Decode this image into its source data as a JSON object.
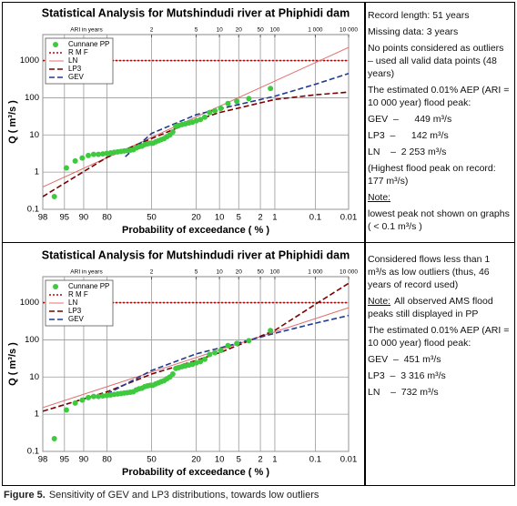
{
  "chart_data": [
    {
      "type": "scatter",
      "title": "Statistical Analysis for Mutshindudi river at Phiphidi dam",
      "xlabel": "Probability of exceedance ( % )",
      "ylabel": "Q  ( m³/s )",
      "xscale": "probit",
      "xlim": [
        98,
        0.01
      ],
      "xticks": [
        98,
        95,
        90,
        80,
        50,
        20,
        10,
        5,
        2,
        1,
        0.1,
        0.01
      ],
      "yscale": "log",
      "ylim": [
        0.1,
        5000
      ],
      "yticks": [
        0.1,
        1,
        10,
        100,
        1000
      ],
      "grid": true,
      "legend": "upper left",
      "top_axis": {
        "label": "ARI in years",
        "ticks": [
          2,
          5,
          10,
          20,
          50,
          100,
          {
            "value": 1000,
            "label": "1 000"
          },
          {
            "value": 10000,
            "label": "10 000"
          }
        ]
      },
      "series": [
        {
          "name": "Cunnane PP",
          "kind": "points",
          "color": "#3fc93f",
          "x": [
            1.24,
            3.32,
            5.39,
            7.47,
            9.54,
            11.62,
            13.69,
            15.77,
            17.84,
            19.92,
            21.99,
            24.07,
            26.14,
            28.22,
            30.29,
            32.37,
            34.44,
            36.51,
            38.59,
            40.66,
            42.74,
            44.81,
            46.89,
            48.96,
            51.04,
            53.11,
            55.19,
            57.26,
            59.34,
            61.41,
            63.49,
            65.56,
            67.63,
            69.71,
            71.78,
            73.86,
            75.93,
            78.01,
            80.08,
            82.16,
            84.23,
            86.31,
            88.38,
            90.46,
            92.53,
            94.61,
            96.68
          ],
          "values": [
            177,
            95,
            80,
            70,
            52,
            45,
            40,
            30,
            26,
            24,
            22,
            21,
            20,
            19,
            18,
            17,
            12,
            10,
            9,
            8,
            7.5,
            7,
            6.5,
            6,
            6,
            5.8,
            5.5,
            5,
            4.8,
            4.5,
            4,
            3.9,
            3.8,
            3.7,
            3.6,
            3.5,
            3.4,
            3.3,
            3.2,
            3.1,
            3,
            3,
            2.8,
            2.4,
            2,
            1.3,
            0.22
          ]
        },
        {
          "name": "R M F",
          "kind": "line",
          "dash": "dotted",
          "color": "#c00000",
          "x": [
            98,
            0.01
          ],
          "values": [
            1000,
            1000
          ]
        },
        {
          "name": "LN",
          "kind": "line",
          "dash": "solid",
          "color": "#e07070",
          "x": [
            98,
            80,
            50,
            20,
            10,
            1,
            0.1,
            0.01
          ],
          "values": [
            0.4,
            2.45,
            8.6,
            30.5,
            58.9,
            281,
            881,
            2253
          ]
        },
        {
          "name": "LP3",
          "kind": "line",
          "dash": "dashed",
          "color": "#7a0000",
          "x": [
            98,
            80,
            50,
            20,
            10,
            1,
            0.1,
            0.01
          ],
          "values": [
            0.22,
            2.5,
            8,
            25,
            40,
            90,
            120,
            142
          ]
        },
        {
          "name": "GEV",
          "kind": "line",
          "dash": "dashed",
          "color": "#1f3a93",
          "x": [
            69,
            50,
            20,
            10,
            1,
            0.1,
            0.01
          ],
          "values": [
            2.6,
            11,
            35,
            50,
            110,
            230,
            449
          ]
        }
      ]
    },
    {
      "type": "scatter",
      "title": "Statistical Analysis for Mutshindudi river at Phiphidi dam",
      "xlabel": "Probability of exceedance ( % )",
      "ylabel": "Q  ( m³/s )",
      "xscale": "probit",
      "xlim": [
        98,
        0.01
      ],
      "xticks": [
        98,
        95,
        90,
        80,
        50,
        20,
        10,
        5,
        2,
        1,
        0.1,
        0.01
      ],
      "yscale": "log",
      "ylim": [
        0.1,
        5000
      ],
      "yticks": [
        0.1,
        1,
        10,
        100,
        1000
      ],
      "grid": true,
      "legend": "upper left",
      "top_axis": {
        "label": "ARI in years",
        "ticks": [
          2,
          5,
          10,
          20,
          50,
          100,
          {
            "value": 1000,
            "label": "1 000"
          },
          {
            "value": 10000,
            "label": "10 000"
          }
        ]
      },
      "series": [
        {
          "name": "Cunnane PP",
          "kind": "points",
          "color": "#3fc93f",
          "x": [
            1.24,
            3.32,
            5.39,
            7.47,
            9.54,
            11.62,
            13.69,
            15.77,
            17.84,
            19.92,
            21.99,
            24.07,
            26.14,
            28.22,
            30.29,
            32.37,
            34.44,
            36.51,
            38.59,
            40.66,
            42.74,
            44.81,
            46.89,
            48.96,
            51.04,
            53.11,
            55.19,
            57.26,
            59.34,
            61.41,
            63.49,
            65.56,
            67.63,
            69.71,
            71.78,
            73.86,
            75.93,
            78.01,
            80.08,
            82.16,
            84.23,
            86.31,
            88.38,
            90.46,
            92.53,
            94.61,
            96.68
          ],
          "values": [
            177,
            95,
            80,
            70,
            52,
            45,
            40,
            30,
            26,
            24,
            22,
            21,
            20,
            19,
            18,
            17,
            12,
            10,
            9,
            8,
            7.5,
            7,
            6.5,
            6,
            6,
            5.8,
            5.5,
            5,
            4.8,
            4.5,
            4,
            3.9,
            3.8,
            3.7,
            3.6,
            3.5,
            3.4,
            3.3,
            3.2,
            3.1,
            3,
            3,
            2.8,
            2.4,
            2,
            1.3,
            0.22
          ]
        },
        {
          "name": "R M F",
          "kind": "line",
          "dash": "dotted",
          "color": "#c00000",
          "x": [
            98,
            0.01
          ],
          "values": [
            1000,
            1000
          ]
        },
        {
          "name": "LN",
          "kind": "line",
          "dash": "solid",
          "color": "#e07070",
          "x": [
            98,
            80,
            50,
            20,
            10,
            1,
            0.1,
            0.01
          ],
          "values": [
            1.5,
            5.5,
            13.6,
            33.4,
            53.6,
            164,
            372,
            732
          ]
        },
        {
          "name": "LP3",
          "kind": "line",
          "dash": "dashed",
          "color": "#7a0000",
          "x": [
            98,
            80,
            50,
            20,
            10,
            1,
            0.1,
            0.01
          ],
          "values": [
            1.2,
            4,
            12,
            28,
            45,
            180,
            900,
            3316
          ]
        },
        {
          "name": "GEV",
          "kind": "line",
          "dash": "dashed",
          "color": "#1f3a93",
          "x": [
            80,
            50,
            20,
            10,
            1,
            0.1,
            0.01
          ],
          "values": [
            3.5,
            15,
            42,
            60,
            150,
            280,
            451
          ]
        }
      ]
    }
  ],
  "notes": [
    [
      "Record length: 51 years",
      "Missing data: 3 years",
      "No points considered as outliers – used all valid data points (48 years)",
      "The estimated 0.01% AEP (ARI = 10 000 year) flood peak:",
      "GEV  –      449 m³/s",
      "LP3  –      142 m³/s",
      "LN    –  2 253 m³/s",
      "(Highest flood peak on record: 177 m³/s)",
      {
        "underline": "Note:"
      },
      "lowest peak not shown on graphs ( < 0.1 m³/s )"
    ],
    [
      "Considered flows less than 1 m³/s as low outliers (thus, 46 years of record used)",
      {
        "underline": "Note:",
        "text": "All observed AMS flood peaks still displayed in PP"
      },
      "The estimated 0.01% AEP (ARI = 10 000 year) flood peak:",
      "GEV  –  451 m³/s",
      "LP3  –  3 316 m³/s",
      "LN    –  732 m³/s"
    ]
  ],
  "caption": {
    "label": "Figure 5.",
    "text": "Sensitivity of GEV and LP3 distributions, towards low outliers"
  }
}
